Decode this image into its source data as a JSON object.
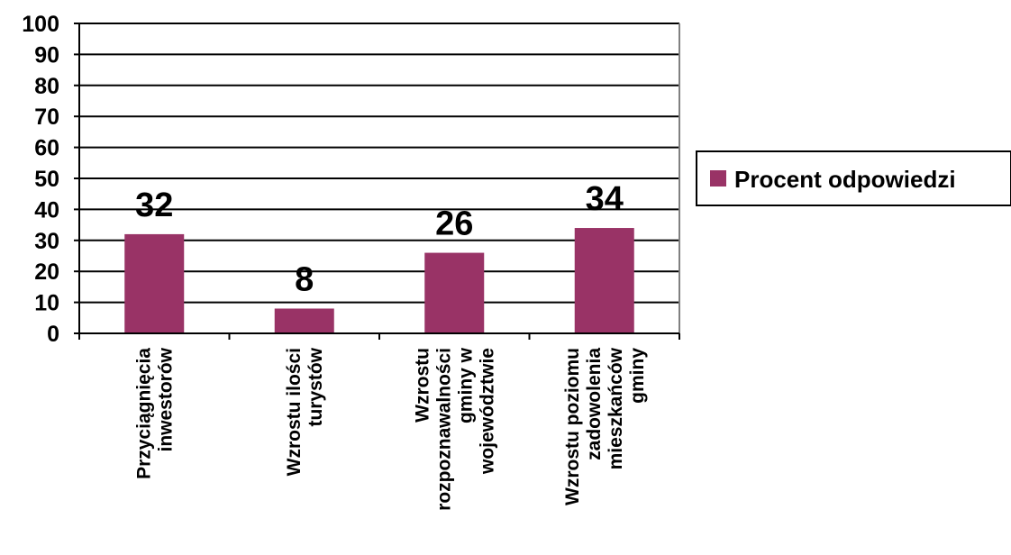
{
  "chart_data": {
    "type": "bar",
    "categories": [
      [
        "Przyciągnięcia",
        "inwestorów"
      ],
      [
        "Wzrostu ilości",
        "turystów"
      ],
      [
        "Wzrostu",
        "rozpoznawalności",
        "gminy w",
        "województwie"
      ],
      [
        "Wzrostu poziomu",
        "zadowolenia",
        "mieszkańców",
        "gminy"
      ]
    ],
    "series": [
      {
        "name": "Procent odpowiedzi",
        "values": [
          32,
          8,
          26,
          34
        ],
        "color": "#993366"
      }
    ],
    "ylim": [
      0,
      100
    ],
    "yticks": [
      "0",
      "10",
      "20",
      "30",
      "40",
      "50",
      "60",
      "70",
      "80",
      "90",
      "100"
    ],
    "grid": true,
    "legend": "right",
    "data_labels": true
  }
}
